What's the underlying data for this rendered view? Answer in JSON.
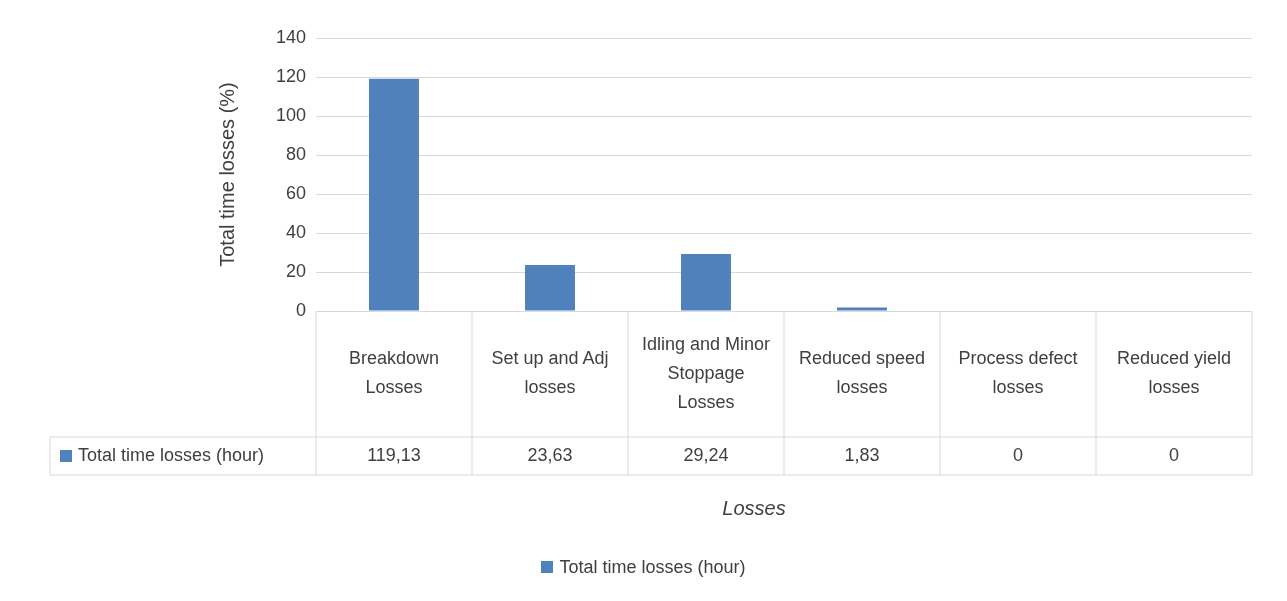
{
  "chart_data": {
    "type": "bar",
    "xlabel": "Losses",
    "ylabel": "Total time losses (%)",
    "categories": [
      "Breakdown Losses",
      "Set up and Adj losses",
      "Idling and Minor Stoppage Losses",
      "Reduced speed losses",
      "Process defect losses",
      "Reduced yield losses"
    ],
    "series": [
      {
        "name": "Total time losses (hour)",
        "color": "#4f81bd",
        "values": [
          119.13,
          23.63,
          29.24,
          1.83,
          0,
          0
        ],
        "value_labels": [
          "119,13",
          "23,63",
          "29,24",
          "1,83",
          "0",
          "0"
        ]
      }
    ],
    "ylim": [
      0,
      140
    ],
    "yticks": [
      0,
      20,
      40,
      60,
      80,
      100,
      120,
      140
    ],
    "grid": "y",
    "legend": "bottom"
  }
}
